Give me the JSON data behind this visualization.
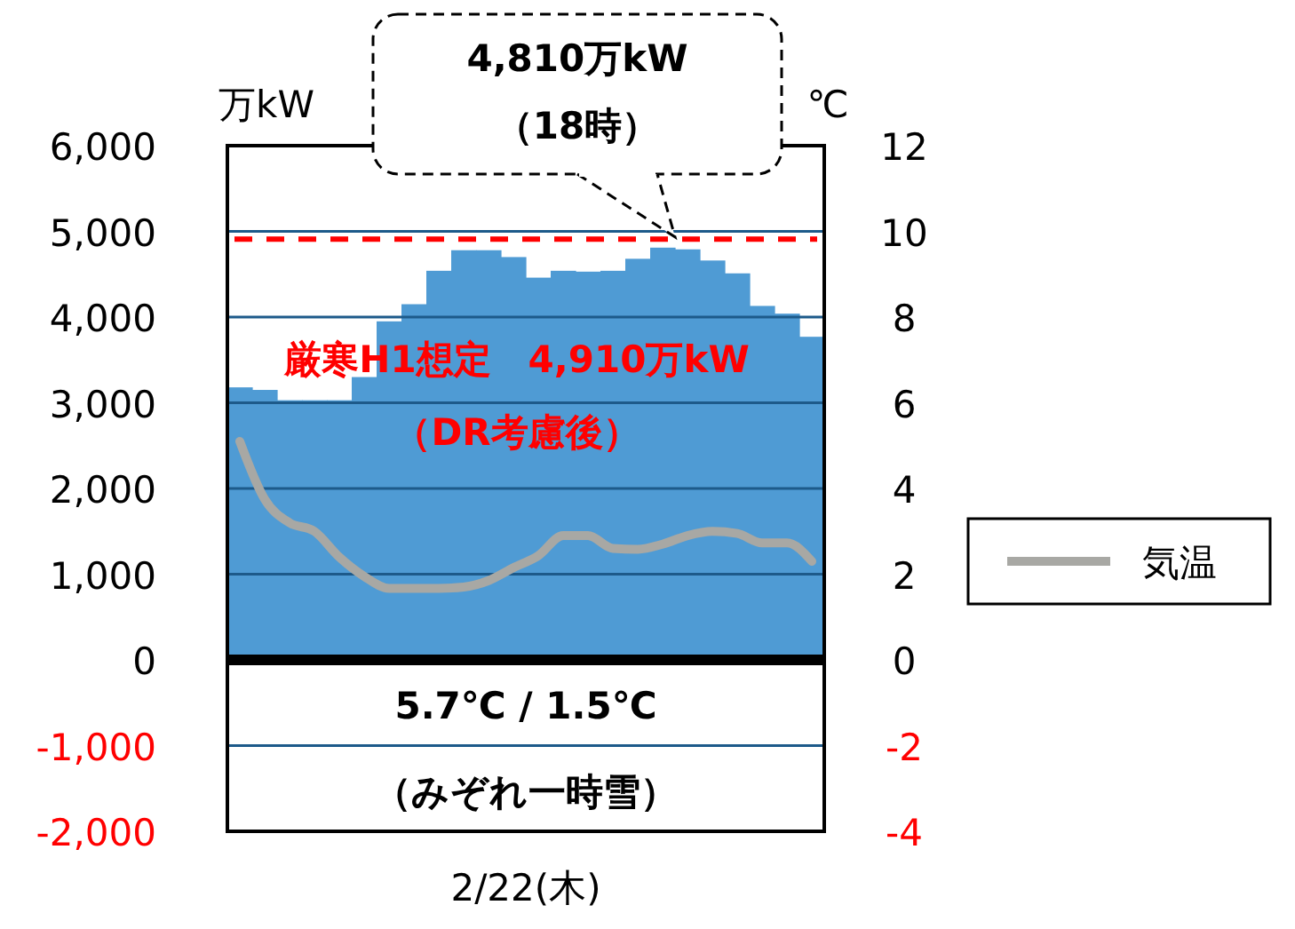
{
  "chart_data": {
    "type": "bar",
    "xlabel": "2/22(木)",
    "ylabel": "万kW",
    "y2label": "℃",
    "categories": [
      null,
      null,
      null,
      null,
      null,
      null,
      null,
      null,
      null,
      null,
      null,
      null,
      null,
      null,
      null,
      null,
      null,
      null,
      null,
      null,
      null,
      null,
      null,
      null
    ],
    "series": [
      {
        "color": "#4f9bd4",
        "values": [
          3180,
          3150,
          3030,
          3030,
          3030,
          3300,
          3950,
          4150,
          4540,
          4780,
          4780,
          4700,
          4460,
          4540,
          4530,
          4540,
          4680,
          4810,
          4790,
          4660,
          4510,
          4130,
          4040,
          3770
        ]
      },
      {
        "type": "line",
        "name": "気温",
        "color": "#a8a8a4",
        "axis": "y2",
        "values": [
          5.1,
          3.75,
          3.2,
          3.0,
          2.4,
          1.95,
          1.67,
          1.67,
          1.67,
          1.7,
          1.85,
          2.15,
          2.43,
          2.9,
          2.9,
          2.6,
          2.58,
          2.7,
          2.9,
          3.0,
          2.95,
          2.73,
          2.73,
          2.3
        ]
      }
    ],
    "ylim": [
      -2000,
      6000
    ],
    "yticks": [
      {
        "value": -2000,
        "label": "-2,000"
      },
      {
        "value": -1000,
        "label": "-1,000"
      },
      0,
      {
        "value": 1000,
        "label": "1,000"
      },
      {
        "value": 2000,
        "label": "2,000"
      },
      {
        "value": 3000,
        "label": "3,000"
      },
      {
        "value": 4000,
        "label": "4,000"
      },
      {
        "value": 5000,
        "label": "5,000"
      },
      {
        "value": 6000,
        "label": "6,000"
      }
    ],
    "y2lim": [
      -4,
      12
    ],
    "y2ticks": [
      -4,
      -2,
      0,
      2,
      4,
      6,
      8,
      10,
      12
    ],
    "grid": "y",
    "legend": "right",
    "marker": "none",
    "line_style": "solid",
    "ref_lines": [
      {
        "axis": "y",
        "value": 4910,
        "label": "厳寒H1想定　4,910万kW\n（DR考慮後）",
        "color": "#ff0000",
        "line_style": "dashed"
      }
    ],
    "annotations": [
      {
        "text": "4,810万kW\n（18時）",
        "y": 4810
      },
      "5.7℃ / 1.5℃",
      "（みぞれ一時雪）"
    ]
  }
}
